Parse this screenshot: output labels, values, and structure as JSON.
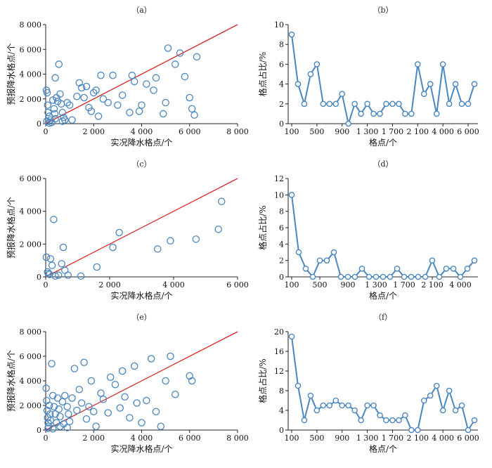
{
  "chart_data": [
    {
      "id": "a",
      "type": "scatter",
      "title": "（a）",
      "xlabel": "实况降水格点/个",
      "ylabel": "预报降水格点/个",
      "xlim": [
        0,
        8000
      ],
      "ylim": [
        0,
        8000
      ],
      "xticks": [
        "0",
        "2 000",
        "4 000",
        "6 000",
        "8 000"
      ],
      "yticks": [
        "0",
        "2 000",
        "4 000",
        "6 000",
        "8 000"
      ],
      "reference_line": "y=x",
      "points": [
        [
          30,
          2700
        ],
        [
          60,
          2500
        ],
        [
          80,
          1500
        ],
        [
          100,
          900
        ],
        [
          150,
          600
        ],
        [
          200,
          300
        ],
        [
          250,
          100
        ],
        [
          300,
          1900
        ],
        [
          350,
          1200
        ],
        [
          380,
          800
        ],
        [
          400,
          3700
        ],
        [
          450,
          2100
        ],
        [
          500,
          1800
        ],
        [
          550,
          4800
        ],
        [
          600,
          2400
        ],
        [
          650,
          1600
        ],
        [
          700,
          900
        ],
        [
          750,
          500
        ],
        [
          800,
          300
        ],
        [
          900,
          1700
        ],
        [
          1000,
          1500
        ],
        [
          1100,
          300
        ],
        [
          1300,
          2200
        ],
        [
          1400,
          3300
        ],
        [
          1500,
          2900
        ],
        [
          1600,
          2100
        ],
        [
          1700,
          3000
        ],
        [
          1800,
          1300
        ],
        [
          1900,
          1000
        ],
        [
          2000,
          2500
        ],
        [
          2100,
          2700
        ],
        [
          2200,
          600
        ],
        [
          2300,
          3900
        ],
        [
          2400,
          2000
        ],
        [
          2600,
          1700
        ],
        [
          2800,
          3900
        ],
        [
          3000,
          1500
        ],
        [
          3200,
          2300
        ],
        [
          3500,
          900
        ],
        [
          3600,
          3900
        ],
        [
          3700,
          3400
        ],
        [
          3900,
          1000
        ],
        [
          4000,
          1500
        ],
        [
          4200,
          3200
        ],
        [
          4500,
          2700
        ],
        [
          4600,
          3700
        ],
        [
          4900,
          800
        ],
        [
          5000,
          1700
        ],
        [
          5100,
          6100
        ],
        [
          5400,
          4800
        ],
        [
          5600,
          5700
        ],
        [
          5800,
          3800
        ],
        [
          6000,
          2100
        ],
        [
          6100,
          1200
        ],
        [
          6200,
          700
        ],
        [
          6300,
          5400
        ],
        [
          150,
          50
        ],
        [
          50,
          200
        ],
        [
          400,
          400
        ],
        [
          700,
          200
        ]
      ]
    },
    {
      "id": "b",
      "type": "line",
      "title": "（b）",
      "xlabel": "格点/个",
      "ylabel": "格点占比/%",
      "ylim": [
        0,
        10
      ],
      "yticks": [
        "0",
        "2",
        "4",
        "6",
        "8",
        "10"
      ],
      "xtick_labels": [
        "100",
        "500",
        "900",
        "1 300",
        "1 700",
        "2 100",
        "4 000",
        "6 000"
      ],
      "xtick_positions": [
        0,
        4,
        8,
        12,
        16,
        20,
        24,
        28
      ],
      "values": [
        9,
        4,
        2,
        5,
        6,
        2,
        2,
        2,
        3,
        0,
        2,
        1,
        2,
        1,
        1,
        2,
        2,
        2,
        1,
        1,
        6,
        3,
        4,
        1,
        6,
        2,
        4,
        2,
        2,
        4
      ]
    },
    {
      "id": "c",
      "type": "scatter",
      "title": "（c）",
      "xlabel": "实况降水格点/个",
      "ylabel": "预报降水格点/个",
      "xlim": [
        0,
        6000
      ],
      "ylim": [
        0,
        6000
      ],
      "xticks": [
        "0",
        "2 000",
        "4 000",
        "6 000"
      ],
      "yticks": [
        "0",
        "2 000",
        "4 000",
        "6 000"
      ],
      "reference_line": "y=x",
      "points": [
        [
          20,
          1200
        ],
        [
          60,
          300
        ],
        [
          80,
          200
        ],
        [
          120,
          150
        ],
        [
          150,
          1100
        ],
        [
          200,
          700
        ],
        [
          250,
          3500
        ],
        [
          300,
          50
        ],
        [
          400,
          100
        ],
        [
          500,
          800
        ],
        [
          550,
          1800
        ],
        [
          600,
          400
        ],
        [
          700,
          100
        ],
        [
          1100,
          50
        ],
        [
          1600,
          600
        ],
        [
          2100,
          1800
        ],
        [
          2300,
          2700
        ],
        [
          3500,
          1700
        ],
        [
          3900,
          2200
        ],
        [
          4700,
          2300
        ],
        [
          5400,
          2900
        ],
        [
          5500,
          4600
        ]
      ]
    },
    {
      "id": "d",
      "type": "line",
      "title": "（d）",
      "xlabel": "格点/个",
      "ylabel": "格点占比/%",
      "ylim": [
        0,
        12
      ],
      "yticks": [
        "0",
        "2",
        "4",
        "6",
        "8",
        "10",
        "12"
      ],
      "xtick_labels": [
        "100",
        "500",
        "900",
        "1 300",
        "1 700",
        "2 100",
        "4 000"
      ],
      "xtick_positions": [
        0,
        4,
        8,
        12,
        16,
        20,
        24
      ],
      "values": [
        10,
        3,
        1,
        0,
        2,
        2,
        3,
        0,
        0,
        0,
        1,
        0,
        0,
        0,
        0,
        1,
        0,
        0,
        0,
        0,
        2,
        0,
        1,
        1,
        0,
        1,
        2
      ]
    },
    {
      "id": "e",
      "type": "scatter",
      "title": "（e）",
      "xlabel": "实况降水格点/个",
      "ylabel": "预报降水格点/个",
      "xlim": [
        0,
        8000
      ],
      "ylim": [
        0,
        8000
      ],
      "xticks": [
        "0",
        "2 000",
        "4 000",
        "6 000",
        "8 000"
      ],
      "yticks": [
        "0",
        "2 000",
        "4 000",
        "6 000",
        "8 000"
      ],
      "reference_line": "y=x",
      "points": [
        [
          20,
          3400
        ],
        [
          40,
          2400
        ],
        [
          60,
          1600
        ],
        [
          80,
          1000
        ],
        [
          100,
          600
        ],
        [
          120,
          300
        ],
        [
          150,
          2000
        ],
        [
          180,
          1300
        ],
        [
          200,
          800
        ],
        [
          250,
          5400
        ],
        [
          300,
          2800
        ],
        [
          350,
          1900
        ],
        [
          400,
          1300
        ],
        [
          450,
          600
        ],
        [
          500,
          2600
        ],
        [
          550,
          1700
        ],
        [
          600,
          1100
        ],
        [
          700,
          2300
        ],
        [
          750,
          500
        ],
        [
          800,
          2800
        ],
        [
          900,
          1900
        ],
        [
          950,
          1300
        ],
        [
          1000,
          700
        ],
        [
          1100,
          2600
        ],
        [
          1200,
          5000
        ],
        [
          1300,
          1600
        ],
        [
          1400,
          3300
        ],
        [
          1500,
          2200
        ],
        [
          1600,
          5500
        ],
        [
          1700,
          900
        ],
        [
          1800,
          1900
        ],
        [
          1900,
          4000
        ],
        [
          2000,
          1500
        ],
        [
          2100,
          300
        ],
        [
          2300,
          3000
        ],
        [
          2400,
          2500
        ],
        [
          2600,
          1400
        ],
        [
          2700,
          4300
        ],
        [
          2900,
          3700
        ],
        [
          3100,
          1800
        ],
        [
          3200,
          4800
        ],
        [
          3300,
          2700
        ],
        [
          3500,
          1000
        ],
        [
          3700,
          5200
        ],
        [
          3800,
          2200
        ],
        [
          4000,
          600
        ],
        [
          4200,
          2400
        ],
        [
          4400,
          5800
        ],
        [
          4600,
          1500
        ],
        [
          4800,
          300
        ],
        [
          5000,
          4000
        ],
        [
          5200,
          6000
        ],
        [
          5400,
          2900
        ],
        [
          6000,
          4400
        ],
        [
          6100,
          4000
        ],
        [
          300,
          100
        ],
        [
          100,
          150
        ],
        [
          600,
          300
        ],
        [
          900,
          200
        ]
      ]
    },
    {
      "id": "f",
      "type": "line",
      "title": "（f）",
      "xlabel": "格点/个",
      "ylabel": "格点占比/%",
      "ylim": [
        0,
        20
      ],
      "yticks": [
        "0",
        "4",
        "8",
        "12",
        "16",
        "20"
      ],
      "xtick_labels": [
        "100",
        "500",
        "900",
        "1 300",
        "1 700",
        "2 100",
        "4 000",
        "6 000"
      ],
      "xtick_positions": [
        0,
        4,
        8,
        12,
        16,
        20,
        24,
        28
      ],
      "values": [
        19,
        9,
        2,
        7,
        4,
        5,
        5,
        6,
        5,
        5,
        4,
        2,
        5,
        5,
        3,
        2,
        2,
        2,
        3,
        0,
        0,
        6,
        7,
        9,
        4,
        8,
        4,
        5,
        0,
        2
      ]
    }
  ]
}
